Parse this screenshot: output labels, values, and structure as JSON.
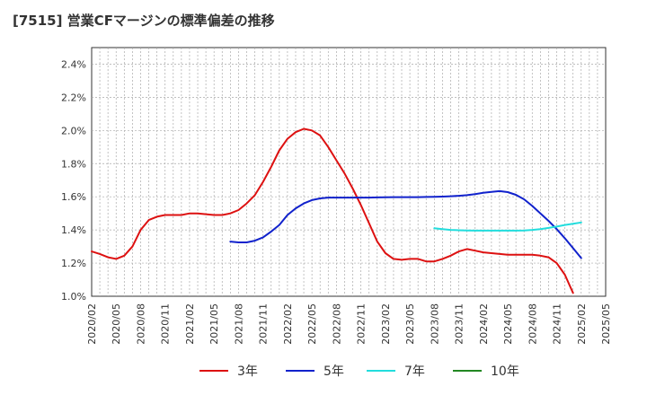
{
  "title": "[7515]  営業CFマージンの標準偏差の推移",
  "chart_data": {
    "type": "line",
    "ylim": [
      1.0,
      2.5
    ],
    "y_ticks": [
      "1.0%",
      "1.2%",
      "1.4%",
      "1.6%",
      "1.8%",
      "2.0%",
      "2.2%",
      "2.4%"
    ],
    "x_ticks": [
      "2020/02",
      "2020/05",
      "2020/08",
      "2020/11",
      "2021/02",
      "2021/05",
      "2021/08",
      "2021/11",
      "2022/02",
      "2022/05",
      "2022/08",
      "2022/11",
      "2023/02",
      "2023/05",
      "2023/08",
      "2023/11",
      "2024/02",
      "2024/05",
      "2024/08",
      "2024/11",
      "2025/02",
      "2025/05"
    ],
    "grid": true,
    "legend_position": "bottom",
    "series": [
      {
        "name": "3年",
        "color": "#dd1111",
        "points": [
          [
            "2020/02",
            1.27
          ],
          [
            "2020/03",
            1.255
          ],
          [
            "2020/04",
            1.235
          ],
          [
            "2020/05",
            1.225
          ],
          [
            "2020/06",
            1.245
          ],
          [
            "2020/07",
            1.3
          ],
          [
            "2020/08",
            1.4
          ],
          [
            "2020/09",
            1.46
          ],
          [
            "2020/10",
            1.48
          ],
          [
            "2020/11",
            1.49
          ],
          [
            "2020/12",
            1.49
          ],
          [
            "2021/01",
            1.49
          ],
          [
            "2021/02",
            1.5
          ],
          [
            "2021/03",
            1.5
          ],
          [
            "2021/04",
            1.495
          ],
          [
            "2021/05",
            1.49
          ],
          [
            "2021/06",
            1.49
          ],
          [
            "2021/07",
            1.5
          ],
          [
            "2021/08",
            1.52
          ],
          [
            "2021/09",
            1.56
          ],
          [
            "2021/10",
            1.61
          ],
          [
            "2021/11",
            1.69
          ],
          [
            "2021/12",
            1.78
          ],
          [
            "2022/01",
            1.88
          ],
          [
            "2022/02",
            1.95
          ],
          [
            "2022/03",
            1.99
          ],
          [
            "2022/04",
            2.01
          ],
          [
            "2022/05",
            2.0
          ],
          [
            "2022/06",
            1.97
          ],
          [
            "2022/07",
            1.9
          ],
          [
            "2022/08",
            1.82
          ],
          [
            "2022/09",
            1.74
          ],
          [
            "2022/10",
            1.65
          ],
          [
            "2022/11",
            1.55
          ],
          [
            "2022/12",
            1.44
          ],
          [
            "2023/01",
            1.33
          ],
          [
            "2023/02",
            1.26
          ],
          [
            "2023/03",
            1.225
          ],
          [
            "2023/04",
            1.22
          ],
          [
            "2023/05",
            1.225
          ],
          [
            "2023/06",
            1.225
          ],
          [
            "2023/07",
            1.21
          ],
          [
            "2023/08",
            1.21
          ],
          [
            "2023/09",
            1.225
          ],
          [
            "2023/10",
            1.245
          ],
          [
            "2023/11",
            1.27
          ],
          [
            "2023/12",
            1.285
          ],
          [
            "2024/01",
            1.275
          ],
          [
            "2024/02",
            1.265
          ],
          [
            "2024/03",
            1.26
          ],
          [
            "2024/04",
            1.255
          ],
          [
            "2024/05",
            1.25
          ],
          [
            "2024/06",
            1.25
          ],
          [
            "2024/07",
            1.25
          ],
          [
            "2024/08",
            1.25
          ],
          [
            "2024/09",
            1.245
          ],
          [
            "2024/10",
            1.235
          ],
          [
            "2024/11",
            1.2
          ],
          [
            "2024/12",
            1.13
          ],
          [
            "2025/01",
            1.02
          ]
        ]
      },
      {
        "name": "5年",
        "color": "#1122cc",
        "points": [
          [
            "2021/07",
            1.33
          ],
          [
            "2021/08",
            1.325
          ],
          [
            "2021/09",
            1.325
          ],
          [
            "2021/10",
            1.335
          ],
          [
            "2021/11",
            1.355
          ],
          [
            "2021/12",
            1.39
          ],
          [
            "2022/01",
            1.43
          ],
          [
            "2022/02",
            1.49
          ],
          [
            "2022/03",
            1.53
          ],
          [
            "2022/04",
            1.56
          ],
          [
            "2022/05",
            1.58
          ],
          [
            "2022/06",
            1.59
          ],
          [
            "2022/07",
            1.595
          ],
          [
            "2022/08",
            1.595
          ],
          [
            "2022/09",
            1.595
          ],
          [
            "2022/10",
            1.595
          ],
          [
            "2022/11",
            1.595
          ],
          [
            "2022/12",
            1.595
          ],
          [
            "2023/01",
            1.596
          ],
          [
            "2023/02",
            1.597
          ],
          [
            "2023/03",
            1.598
          ],
          [
            "2023/04",
            1.598
          ],
          [
            "2023/05",
            1.598
          ],
          [
            "2023/06",
            1.598
          ],
          [
            "2023/07",
            1.599
          ],
          [
            "2023/08",
            1.6
          ],
          [
            "2023/09",
            1.601
          ],
          [
            "2023/10",
            1.603
          ],
          [
            "2023/11",
            1.606
          ],
          [
            "2023/12",
            1.61
          ],
          [
            "2024/01",
            1.616
          ],
          [
            "2024/02",
            1.624
          ],
          [
            "2024/03",
            1.63
          ],
          [
            "2024/04",
            1.634
          ],
          [
            "2024/05",
            1.628
          ],
          [
            "2024/06",
            1.612
          ],
          [
            "2024/07",
            1.585
          ],
          [
            "2024/08",
            1.545
          ],
          [
            "2024/09",
            1.5
          ],
          [
            "2024/10",
            1.455
          ],
          [
            "2024/11",
            1.405
          ],
          [
            "2024/12",
            1.35
          ],
          [
            "2025/01",
            1.29
          ],
          [
            "2025/02",
            1.23
          ]
        ]
      },
      {
        "name": "7年",
        "color": "#22dddd",
        "points": [
          [
            "2023/08",
            1.41
          ],
          [
            "2023/09",
            1.405
          ],
          [
            "2023/10",
            1.4
          ],
          [
            "2023/11",
            1.398
          ],
          [
            "2023/12",
            1.397
          ],
          [
            "2024/01",
            1.396
          ],
          [
            "2024/02",
            1.396
          ],
          [
            "2024/03",
            1.396
          ],
          [
            "2024/04",
            1.396
          ],
          [
            "2024/05",
            1.396
          ],
          [
            "2024/06",
            1.396
          ],
          [
            "2024/07",
            1.397
          ],
          [
            "2024/08",
            1.4
          ],
          [
            "2024/09",
            1.405
          ],
          [
            "2024/10",
            1.412
          ],
          [
            "2024/11",
            1.42
          ],
          [
            "2024/12",
            1.43
          ],
          [
            "2025/01",
            1.437
          ],
          [
            "2025/02",
            1.445
          ]
        ]
      },
      {
        "name": "10年",
        "color": "#228822",
        "points": []
      }
    ]
  }
}
